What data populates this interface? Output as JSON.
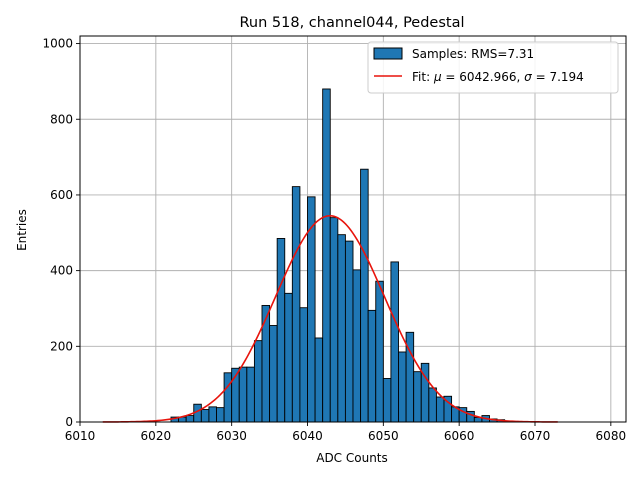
{
  "chart_data": {
    "type": "bar",
    "title": "Run 518, channel044, Pedestal",
    "xlabel": "ADC Counts",
    "ylabel": "Entries",
    "xlim": [
      6010,
      6082
    ],
    "ylim": [
      0,
      1020
    ],
    "xticks": [
      6010,
      6020,
      6030,
      6040,
      6050,
      6060,
      6070,
      6080
    ],
    "yticks": [
      0,
      200,
      400,
      600,
      800,
      1000
    ],
    "grid": true,
    "legend_position": "top-right",
    "bin_width": 1,
    "bins": [
      {
        "x": 6022,
        "y": 13
      },
      {
        "x": 6023,
        "y": 13
      },
      {
        "x": 6024,
        "y": 17
      },
      {
        "x": 6025,
        "y": 47
      },
      {
        "x": 6026,
        "y": 33
      },
      {
        "x": 6027,
        "y": 40
      },
      {
        "x": 6028,
        "y": 38
      },
      {
        "x": 6029,
        "y": 130
      },
      {
        "x": 6030,
        "y": 142
      },
      {
        "x": 6031,
        "y": 145
      },
      {
        "x": 6032,
        "y": 145
      },
      {
        "x": 6033,
        "y": 215
      },
      {
        "x": 6034,
        "y": 308
      },
      {
        "x": 6035,
        "y": 255
      },
      {
        "x": 6036,
        "y": 485
      },
      {
        "x": 6037,
        "y": 340
      },
      {
        "x": 6038,
        "y": 622
      },
      {
        "x": 6039,
        "y": 302
      },
      {
        "x": 6040,
        "y": 595
      },
      {
        "x": 6041,
        "y": 222
      },
      {
        "x": 6042,
        "y": 880
      },
      {
        "x": 6043,
        "y": 540
      },
      {
        "x": 6044,
        "y": 495
      },
      {
        "x": 6045,
        "y": 478
      },
      {
        "x": 6046,
        "y": 402
      },
      {
        "x": 6047,
        "y": 668
      },
      {
        "x": 6048,
        "y": 295
      },
      {
        "x": 6049,
        "y": 372
      },
      {
        "x": 6050,
        "y": 115
      },
      {
        "x": 6051,
        "y": 423
      },
      {
        "x": 6052,
        "y": 185
      },
      {
        "x": 6053,
        "y": 237
      },
      {
        "x": 6054,
        "y": 133
      },
      {
        "x": 6055,
        "y": 155
      },
      {
        "x": 6056,
        "y": 90
      },
      {
        "x": 6057,
        "y": 66
      },
      {
        "x": 6058,
        "y": 68
      },
      {
        "x": 6059,
        "y": 40
      },
      {
        "x": 6060,
        "y": 38
      },
      {
        "x": 6061,
        "y": 28
      },
      {
        "x": 6062,
        "y": 12
      },
      {
        "x": 6063,
        "y": 17
      },
      {
        "x": 6064,
        "y": 8
      },
      {
        "x": 6065,
        "y": 6
      }
    ],
    "fit": {
      "mu": 6042.966,
      "sigma": 7.194,
      "amplitude": 545,
      "range": [
        6013,
        6073
      ]
    },
    "legend": {
      "samples_label": "Samples: RMS=7.31",
      "fit_prefix": "Fit: ",
      "mu_symbol": "μ",
      "mu_value": " = 6042.966, ",
      "sigma_symbol": "σ",
      "sigma_value": " = 7.194"
    },
    "colors": {
      "bar_fill": "#1f77b4",
      "bar_edge": "#000000",
      "fit_line": "#e8140c",
      "grid": "#b0b0b0"
    }
  }
}
